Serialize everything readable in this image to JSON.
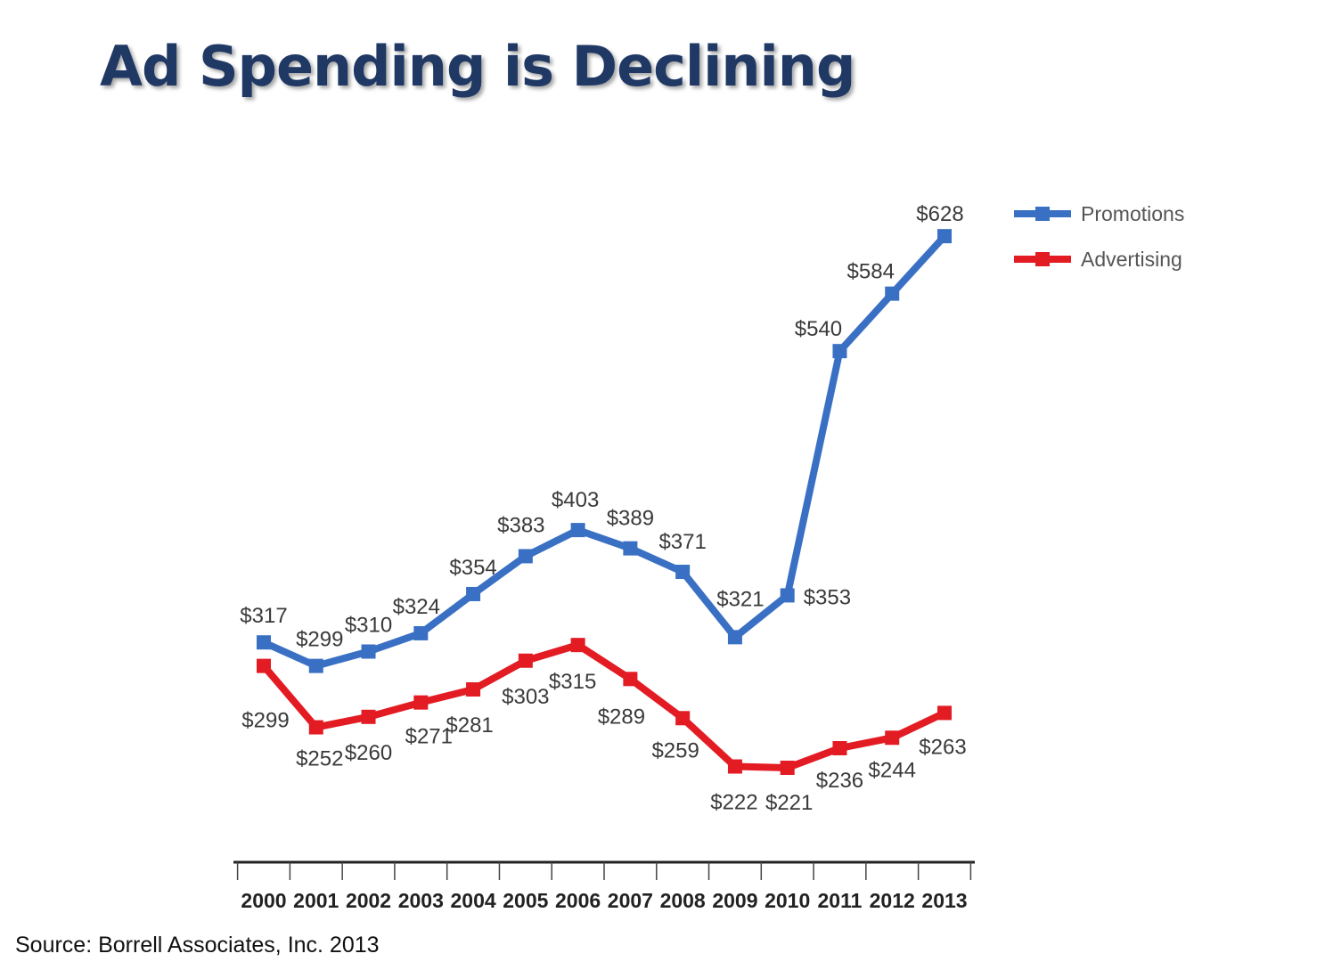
{
  "slide": {
    "title": "Ad Spending is Declining",
    "source": "Source: Borrell Associates, Inc. 2013"
  },
  "colors": {
    "promotions": "#3a70c4",
    "advertising": "#e31b23",
    "title": "#1f3864"
  },
  "chart_data": {
    "type": "line",
    "title": "",
    "xlabel": "",
    "ylabel": "",
    "x": [
      "2000",
      "2001",
      "2002",
      "2003",
      "2004",
      "2005",
      "2006",
      "2007",
      "2008",
      "2009",
      "2010",
      "2011",
      "2012",
      "2013"
    ],
    "ylim": [
      150,
      650
    ],
    "grid": false,
    "legend_position": "top-right",
    "series": [
      {
        "name": "Promotions",
        "color": "#3a70c4",
        "values": [
          317,
          299,
          310,
          324,
          354,
          383,
          403,
          389,
          371,
          321,
          353,
          540,
          584,
          628
        ],
        "labels": [
          "$317",
          "$299",
          "$310",
          "$324",
          "$354",
          "$383",
          "$403",
          "$389",
          "$371",
          "$321",
          "$353",
          "$540",
          "$584",
          "$628"
        ]
      },
      {
        "name": "Advertising",
        "color": "#e31b23",
        "values": [
          299,
          252,
          260,
          271,
          281,
          303,
          315,
          289,
          259,
          222,
          221,
          236,
          244,
          263
        ],
        "labels": [
          "$299",
          "$252",
          "$260",
          "$271",
          "$281",
          "$303",
          "$315",
          "$289",
          "$259",
          "$222",
          "$221",
          "$236",
          "$244",
          "$263"
        ]
      }
    ]
  }
}
